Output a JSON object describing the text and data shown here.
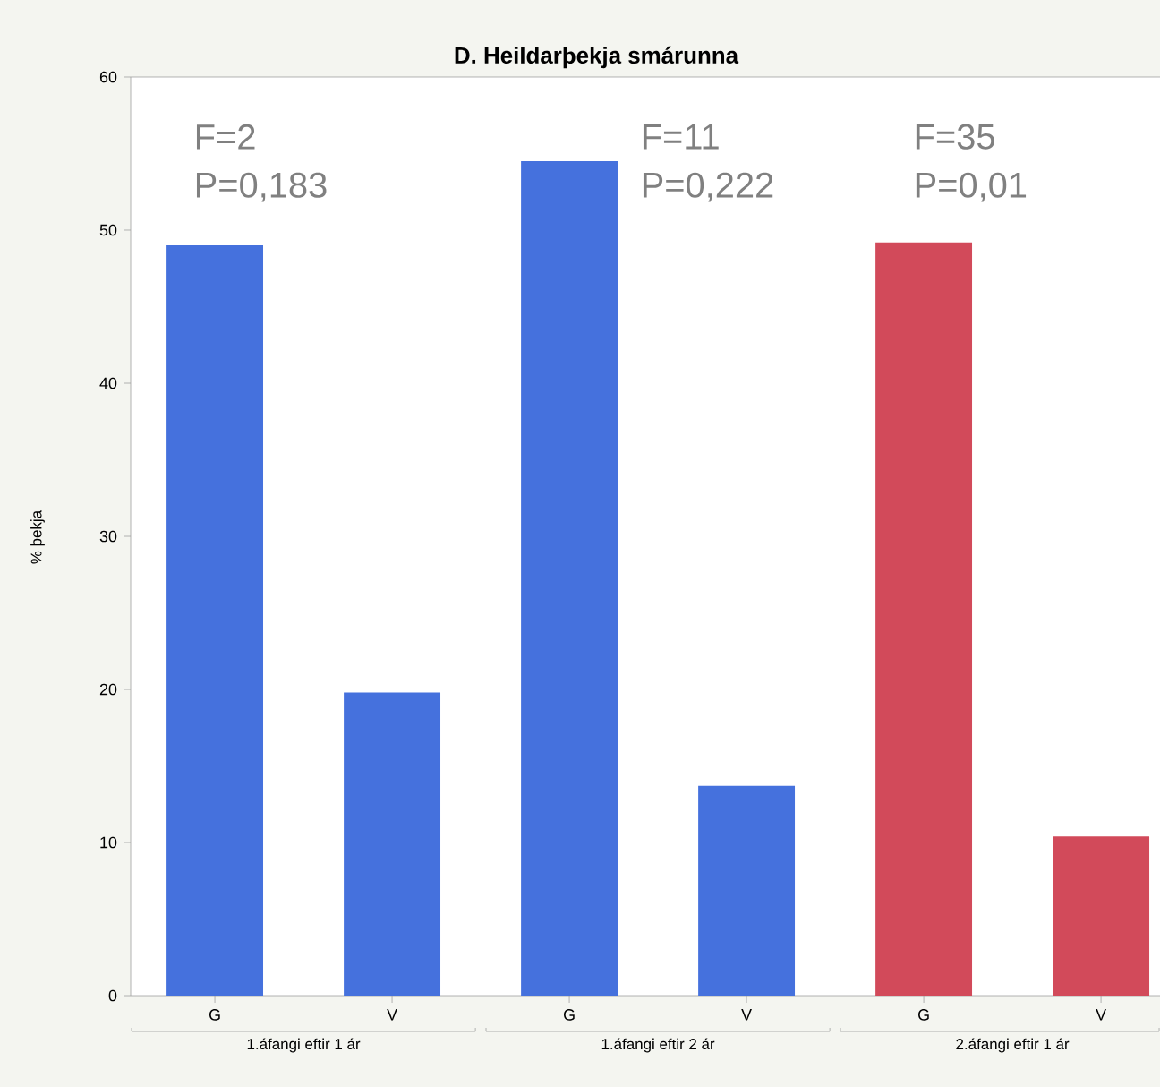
{
  "chart_data": {
    "type": "bar",
    "title": "D. Heildarþekja smárunna",
    "ylabel": "% þekja",
    "categories": [
      "G",
      "V",
      "G",
      "V",
      "G",
      "V"
    ],
    "values": [
      49,
      19.8,
      54.5,
      13.7,
      49.2,
      10.4
    ],
    "colors": [
      "#4571dd",
      "#4571dd",
      "#4571dd",
      "#4571dd",
      "#d24a5a",
      "#d24a5a"
    ],
    "ylim": [
      0,
      60
    ],
    "yticks": [
      0,
      10,
      20,
      30,
      40,
      50,
      60
    ],
    "annotations": [
      "F=2",
      "P=0,183",
      "F=11",
      "P=0,222",
      "F=35",
      "P=0,01",
      "1.áfangi eftir 1 ár",
      "1.áfangi eftir 2 ár",
      "2.áfangi eftir 1 ár"
    ]
  }
}
